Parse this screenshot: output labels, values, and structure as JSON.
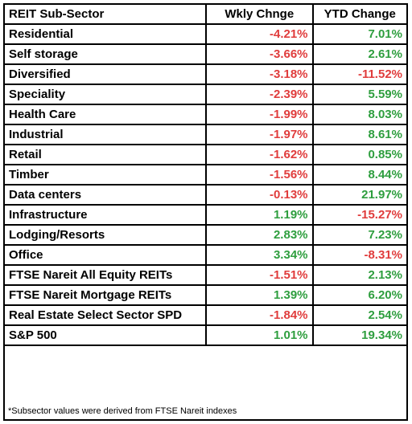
{
  "table": {
    "headers": [
      "REIT Sub-Sector",
      "Wkly Chnge",
      "YTD Change"
    ],
    "rows": [
      {
        "name": "Residential",
        "weekly": "-4.21%",
        "ytd": "7.01%"
      },
      {
        "name": "Self storage",
        "weekly": "-3.66%",
        "ytd": "2.61%"
      },
      {
        "name": "Diversified",
        "weekly": "-3.18%",
        "ytd": "-11.52%"
      },
      {
        "name": "Speciality",
        "weekly": "-2.39%",
        "ytd": "5.59%"
      },
      {
        "name": "Health Care",
        "weekly": "-1.99%",
        "ytd": "8.03%"
      },
      {
        "name": "Industrial",
        "weekly": "-1.97%",
        "ytd": "8.61%"
      },
      {
        "name": "Retail",
        "weekly": "-1.62%",
        "ytd": "0.85%"
      },
      {
        "name": "Timber",
        "weekly": "-1.56%",
        "ytd": "8.44%"
      },
      {
        "name": "Data centers",
        "weekly": "-0.13%",
        "ytd": "21.97%"
      },
      {
        "name": "Infrastructure",
        "weekly": "1.19%",
        "ytd": "-15.27%"
      },
      {
        "name": "Lodging/Resorts",
        "weekly": "2.83%",
        "ytd": "7.23%"
      },
      {
        "name": "Office",
        "weekly": "3.34%",
        "ytd": "-8.31%"
      },
      {
        "name": "FTSE Nareit All Equity REITs",
        "weekly": "-1.51%",
        "ytd": "2.13%"
      },
      {
        "name": "FTSE Nareit Mortgage REITs",
        "weekly": "1.39%",
        "ytd": "6.20%"
      },
      {
        "name": "Real Estate Select Sector SPD",
        "weekly": "-1.84%",
        "ytd": "2.54%"
      },
      {
        "name": "S&P 500",
        "weekly": "1.01%",
        "ytd": "19.34%"
      }
    ],
    "footnote": "*Subsector values were derived from FTSE Nareit indexes"
  },
  "colors": {
    "negative": "#e03c3c",
    "positive": "#2e9e3e",
    "border": "#000000"
  }
}
